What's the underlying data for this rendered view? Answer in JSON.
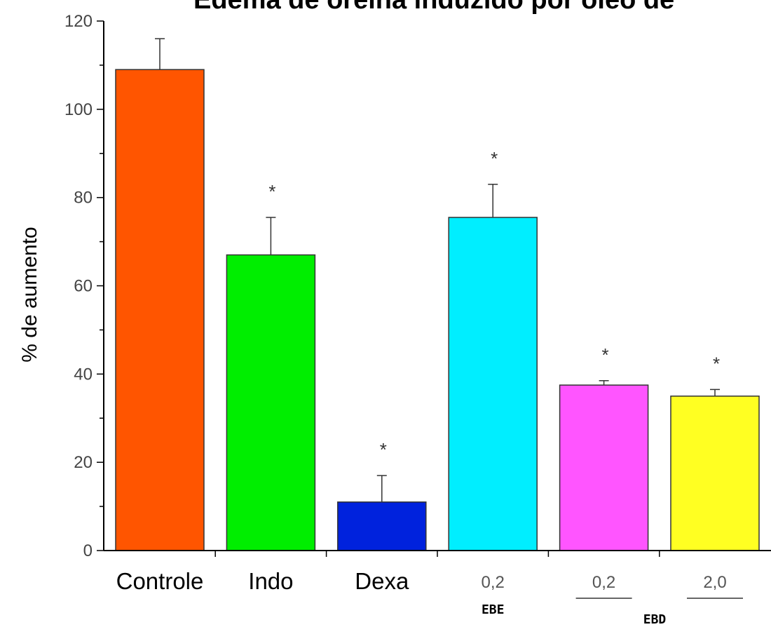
{
  "chart_data": {
    "type": "bar",
    "title": "Edema de orelha induzido por óleo de",
    "ylabel": "% de aumento",
    "xlabel": "",
    "ylim": [
      0,
      120
    ],
    "yticks": [
      0,
      20,
      40,
      60,
      80,
      100,
      120
    ],
    "categories": [
      "Controle",
      "Indo",
      "Dexa",
      "0,2",
      "0,2",
      "2,0"
    ],
    "values": [
      109,
      67,
      11,
      75.5,
      37.5,
      35
    ],
    "errors": [
      7,
      8.5,
      6,
      7.5,
      1,
      1.5
    ],
    "significance": [
      "",
      "*",
      "*",
      "*",
      "*",
      "*"
    ],
    "colors": [
      "#ff5500",
      "#00ee00",
      "#0022dd",
      "#00eeff",
      "#ff55ff",
      "#ffff22"
    ],
    "groups": [
      {
        "label": "EBE",
        "categories": [
          3
        ]
      },
      {
        "label": "EBD",
        "categories": [
          4,
          5
        ]
      }
    ],
    "grid": false
  }
}
